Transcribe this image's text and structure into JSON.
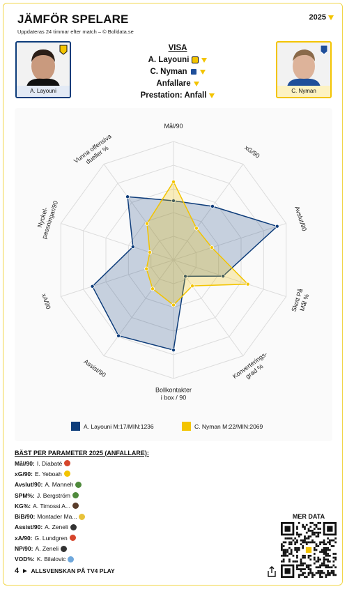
{
  "header": {
    "title": "JÄMFÖR SPELARE",
    "subtitle": "Uppdateras 24 timmar efter match – © Bolldata.se",
    "season": "2025"
  },
  "players": {
    "left": {
      "name": "A. Layouni"
    },
    "right": {
      "name": "C. Nyman"
    }
  },
  "visa": {
    "heading": "VISA",
    "player1": "A. Layouni",
    "player2": "C. Nyman",
    "position": "Anfallare",
    "category": "Prestation: Anfall"
  },
  "chart_data": {
    "type": "radar",
    "axes": [
      "Mål/90",
      "xG/90",
      "Avslut/90",
      "Skott På Mål %",
      "Konverterings-grad %",
      "Bollkontakter i box / 90",
      "Assist/90",
      "xA/90",
      "Nyckel-passningar/90",
      "Vunna offensiva duseller %"
    ],
    "axis_labels": [
      [
        "Mål/90"
      ],
      [
        "xG/90"
      ],
      [
        "Avslut/90"
      ],
      [
        "Skott På",
        "Mål %"
      ],
      [
        "Konverterings-",
        "grad %"
      ],
      [
        "Bollkontakter",
        "i box / 90"
      ],
      [
        "Assist/90"
      ],
      [
        "xA/90"
      ],
      [
        "Nyckel-",
        "passningar/90"
      ],
      [
        "Vunna offensiva",
        "dueller %"
      ]
    ],
    "rings": 5,
    "max": 1,
    "series": [
      {
        "name": "A. Layouni M:17/MIN:1236",
        "color": "#0d3c7a",
        "values": [
          0.5,
          0.56,
          0.92,
          0.44,
          0.17,
          0.76,
          0.79,
          0.72,
          0.36,
          0.66
        ]
      },
      {
        "name": "C. Nyman M:22/MIN:2069",
        "color": "#f3c400",
        "values": [
          0.66,
          0.33,
          0.34,
          0.66,
          0.27,
          0.38,
          0.3,
          0.24,
          0.21,
          0.38
        ]
      }
    ]
  },
  "best": {
    "heading": "BÄST PER PARAMETER 2025 (ANFALLARE):",
    "rows": [
      {
        "label": "Mål/90:",
        "player": "I. Diabaté",
        "color": "#d6452b"
      },
      {
        "label": "xG/90:",
        "player": "E. Yeboah",
        "color": "#f3c400"
      },
      {
        "label": "Avslut/90:",
        "player": "A. Manneh",
        "color": "#4f8a3c"
      },
      {
        "label": "SPM%:",
        "player": "J. Bergström",
        "color": "#4f8a3c"
      },
      {
        "label": "KG%:",
        "player": "A. Timossi A...",
        "color": "#5a3d2b"
      },
      {
        "label": "BiB/90:",
        "player": "Montader Ma...",
        "color": "#e8c23a"
      },
      {
        "label": "Assist/90:",
        "player": "A. Zeneli",
        "color": "#333333"
      },
      {
        "label": "xA/90:",
        "player": "G. Lundgren",
        "color": "#d6452b"
      },
      {
        "label": "NP/90:",
        "player": "A. Zeneli",
        "color": "#333333"
      },
      {
        "label": "VOD%:",
        "player": "K. Bilalovic",
        "color": "#6fa8dc"
      }
    ]
  },
  "more": {
    "label": "MER DATA"
  },
  "footer": {
    "channel": "4",
    "text": "ALLSVENSKAN PÅ TV4 PLAY"
  }
}
